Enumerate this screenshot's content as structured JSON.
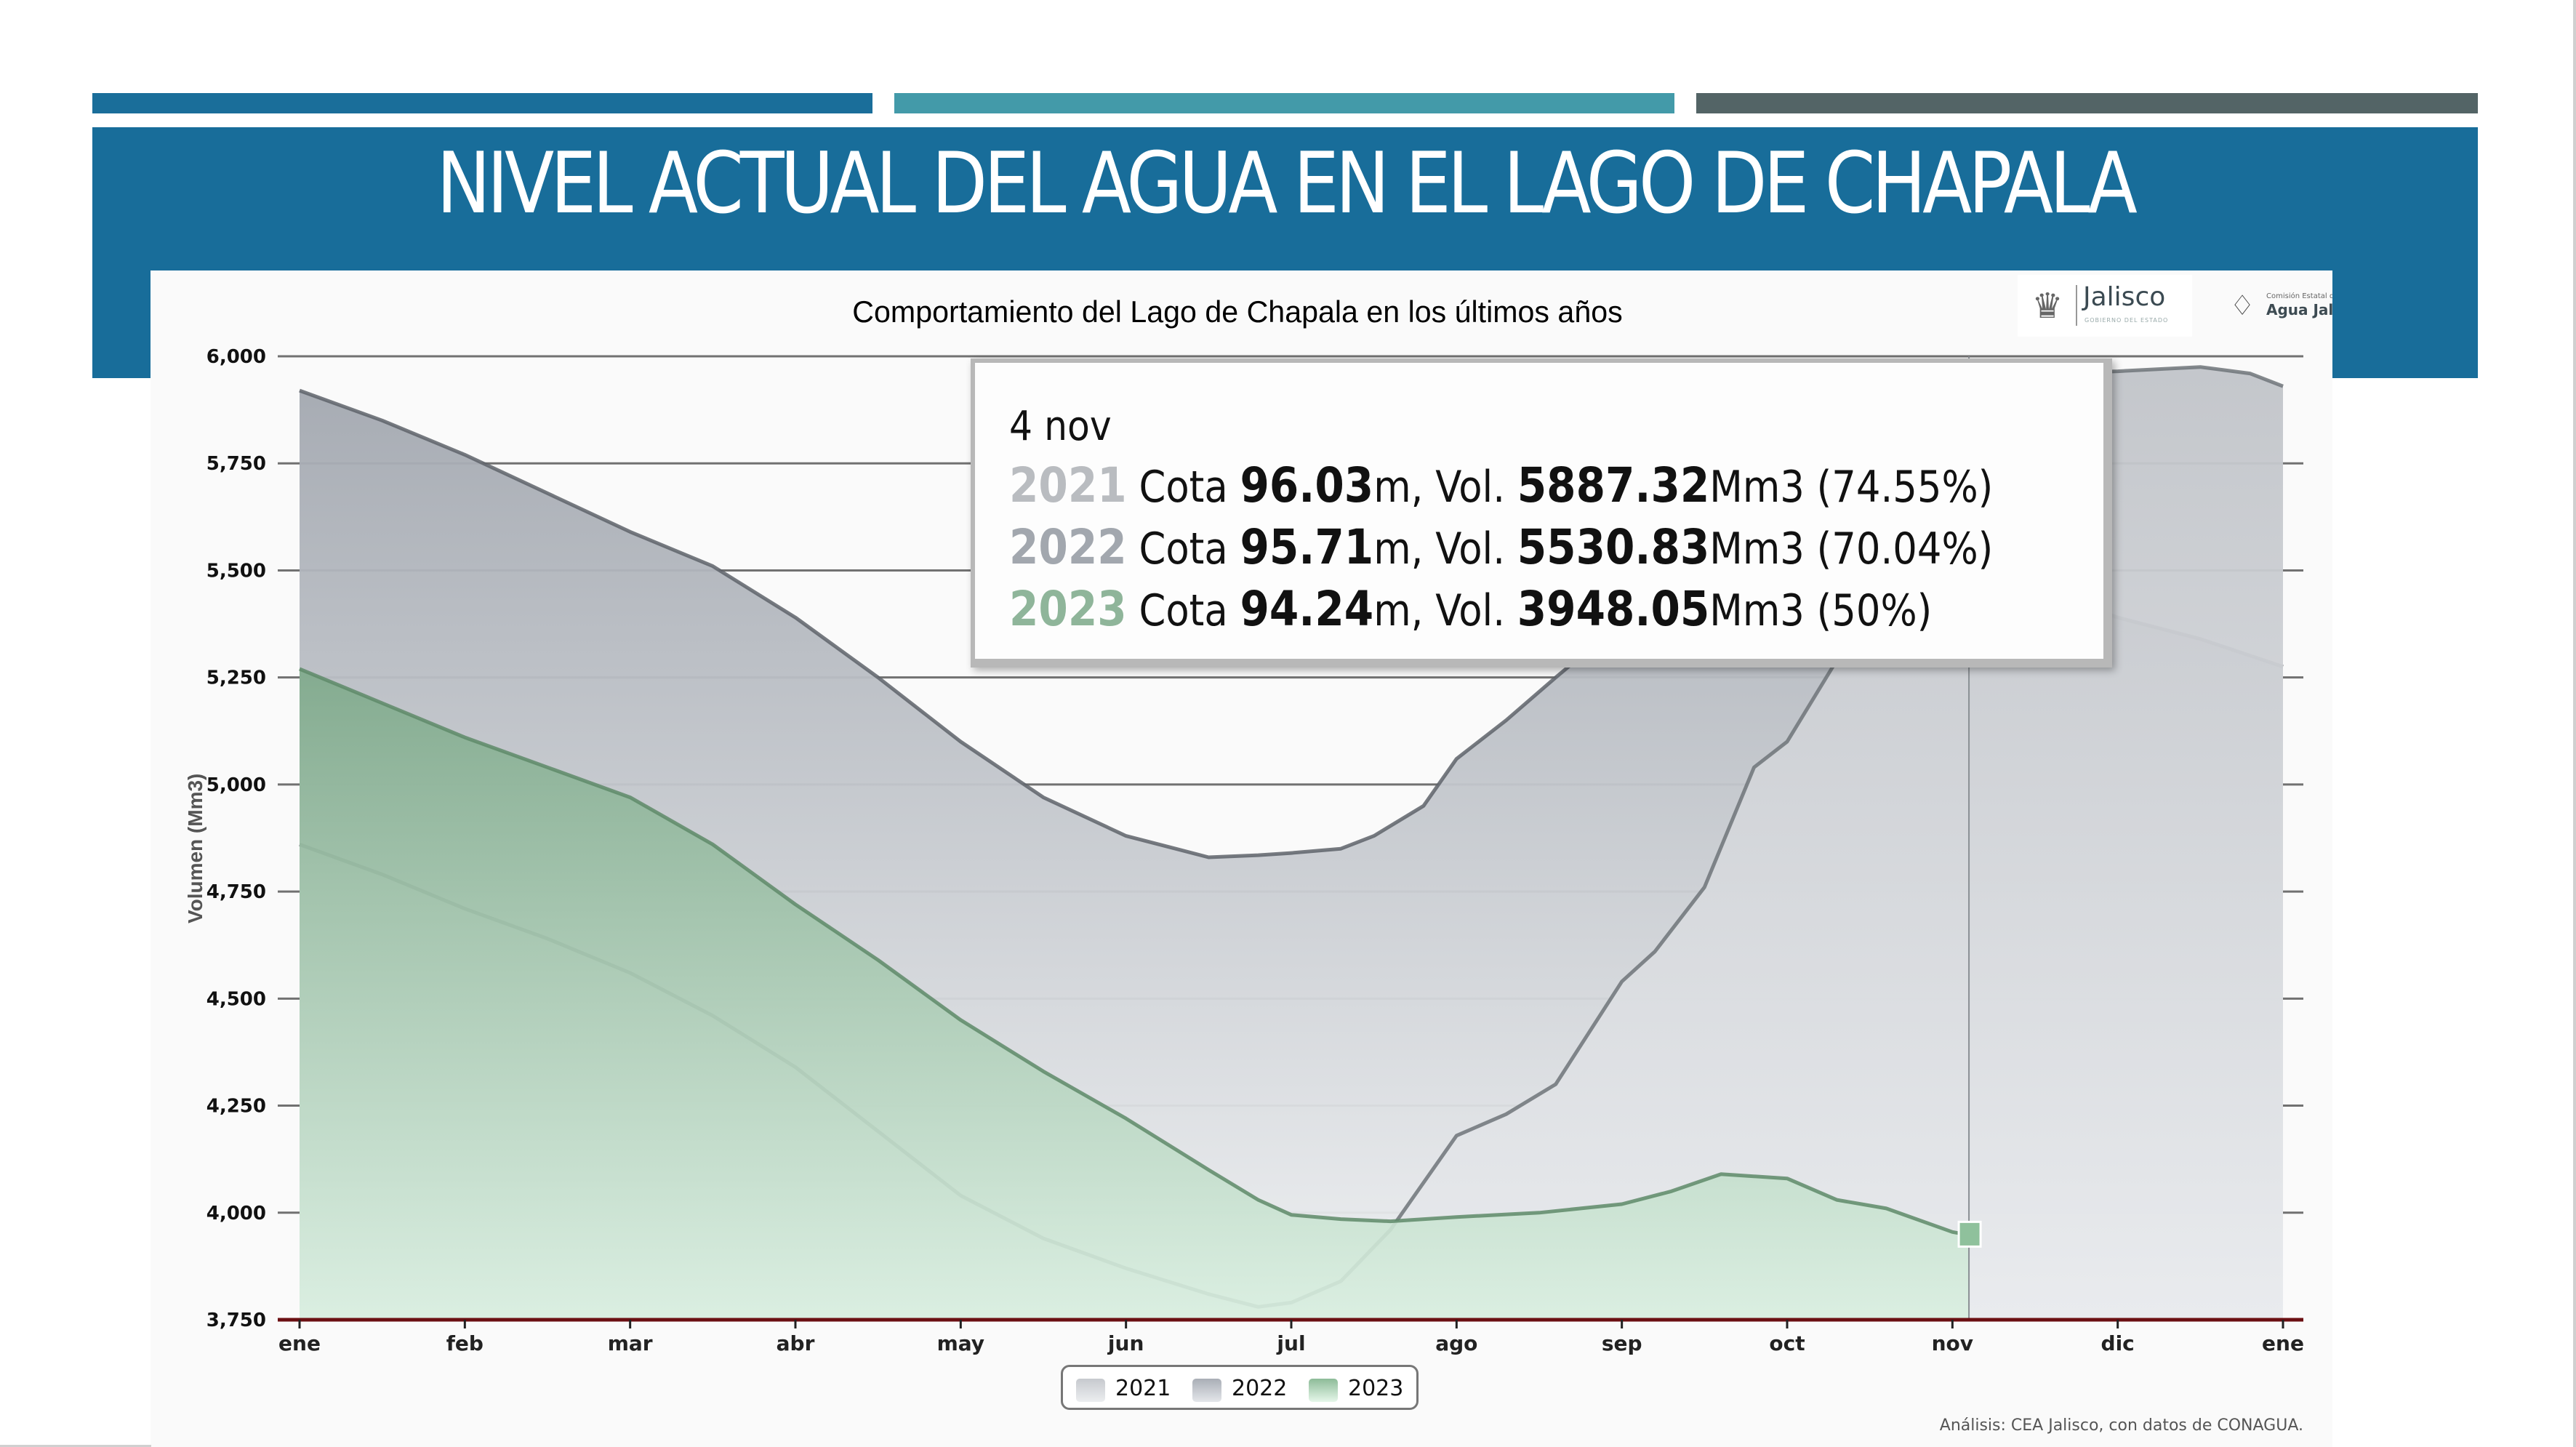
{
  "slide": {
    "title": "NIVEL ACTUAL DEL AGUA EN EL LAGO DE CHAPALA",
    "colors": {
      "banner": "#186d9a",
      "accent_bar_1": "#1a6e9a",
      "accent_bar_2": "#439aa9",
      "accent_bar_3": "#536466"
    }
  },
  "logos": {
    "jalisco": {
      "icon": "state-crest-icon",
      "name": "Jalisco",
      "subtitle": "GOBIERNO DEL ESTADO"
    },
    "cea": {
      "icon": "water-drop-icon",
      "line1": "Comisión Estatal del",
      "line2": "Agua Jalisco"
    }
  },
  "tooltip": {
    "date": "4 nov",
    "rows": [
      {
        "year": "2021",
        "color": "#b9bcc0",
        "cota_label": "Cota",
        "cota": "96.03",
        "cota_unit": "m,",
        "vol_label": "Vol.",
        "vol": "5887.32",
        "vol_unit": "Mm3",
        "pct": "(74.55%)"
      },
      {
        "year": "2022",
        "color": "#a2a7ae",
        "cota_label": "Cota",
        "cota": "95.71",
        "cota_unit": "m,",
        "vol_label": "Vol.",
        "vol": "5530.83",
        "vol_unit": "Mm3",
        "pct": "(70.04%)"
      },
      {
        "year": "2023",
        "color": "#8fb59a",
        "cota_label": "Cota",
        "cota": "94.24",
        "cota_unit": "m,",
        "vol_label": "Vol.",
        "vol": "3948.05",
        "vol_unit": "Mm3",
        "pct": "(50%)"
      }
    ]
  },
  "legend": [
    {
      "label": "2021",
      "swatch_top": "#c6c9ce",
      "swatch_bottom": "#eceef0"
    },
    {
      "label": "2022",
      "swatch_top": "#a9aeb6",
      "swatch_bottom": "#e4e6ea"
    },
    {
      "label": "2023",
      "swatch_top": "#8dbb98",
      "swatch_bottom": "#e6f7ea"
    }
  ],
  "source_note": "Análisis: CEA Jalisco, con datos de CONAGUA.",
  "chart_data": {
    "type": "area",
    "title": "Comportamiento del Lago de Chapala en los últimos años",
    "xlabel": "",
    "ylabel": "Volumen (Mm3)",
    "ylim": [
      3750,
      6000
    ],
    "yticks": [
      3750,
      4000,
      4250,
      4500,
      4750,
      5000,
      5250,
      5500,
      5750,
      6000
    ],
    "ytick_labels": [
      "3,750",
      "4,000",
      "4,250",
      "4,500",
      "4,750",
      "5,000",
      "5,250",
      "5,500",
      "5,750",
      "6,000"
    ],
    "categories": [
      "ene",
      "feb",
      "mar",
      "abr",
      "may",
      "jun",
      "jul",
      "ago",
      "sep",
      "oct",
      "nov",
      "dic",
      "ene"
    ],
    "grid": true,
    "legend_position": "bottom-center",
    "hover_marker": {
      "date": "4 nov",
      "month_index": 10.1,
      "series": "2023",
      "value": 3948.05
    },
    "series": [
      {
        "name": "2022",
        "color_line": "#5e636a",
        "fill_top": "#a3a8b0",
        "fill_bottom": "#eef0f2",
        "x": [
          0,
          0.5,
          1,
          1.5,
          2,
          2.5,
          3,
          3.5,
          4,
          4.5,
          5,
          5.3,
          5.5,
          5.8,
          6,
          6.3,
          6.5,
          6.8,
          7,
          7.3,
          7.6,
          8,
          8.5,
          9,
          9.5,
          9.8,
          10,
          10.5,
          11,
          11.5,
          12
        ],
        "values": [
          5920,
          5850,
          5770,
          5680,
          5590,
          5510,
          5390,
          5250,
          5100,
          4970,
          4880,
          4850,
          4830,
          4835,
          4840,
          4850,
          4880,
          4950,
          5060,
          5150,
          5250,
          5380,
          5480,
          5560,
          5580,
          5520,
          5530,
          5460,
          5390,
          5340,
          5275
        ]
      },
      {
        "name": "2021",
        "color_line": "#6f7479",
        "fill_top": "#c1c4c9",
        "fill_bottom": "#e9ebee",
        "x": [
          0,
          0.5,
          1,
          1.5,
          2,
          2.5,
          3,
          3.5,
          4,
          4.5,
          5,
          5.5,
          5.8,
          6,
          6.3,
          6.6,
          7,
          7.3,
          7.6,
          8,
          8.2,
          8.5,
          8.8,
          9,
          9.3,
          9.6,
          10,
          10.1,
          10.5,
          11,
          11.5,
          11.8,
          12
        ],
        "values": [
          4860,
          4790,
          4710,
          4640,
          4560,
          4460,
          4340,
          4190,
          4040,
          3940,
          3870,
          3810,
          3780,
          3790,
          3840,
          3960,
          4180,
          4230,
          4300,
          4540,
          4610,
          4760,
          5040,
          5100,
          5290,
          5520,
          5860,
          5887,
          5960,
          5965,
          5975,
          5960,
          5930
        ]
      },
      {
        "name": "2023",
        "color_line": "#5e8a68",
        "fill_top": "#7ea98a",
        "fill_bottom": "#d9efe0",
        "x": [
          0,
          0.5,
          1,
          1.5,
          2,
          2.5,
          3,
          3.5,
          4,
          4.5,
          5,
          5.5,
          5.8,
          6,
          6.3,
          6.6,
          7,
          7.5,
          8,
          8.3,
          8.6,
          9,
          9.3,
          9.6,
          10,
          10.1
        ],
        "values": [
          5270,
          5190,
          5110,
          5040,
          4970,
          4860,
          4720,
          4590,
          4450,
          4330,
          4220,
          4100,
          4030,
          3995,
          3985,
          3980,
          3990,
          4000,
          4020,
          4050,
          4090,
          4080,
          4030,
          4010,
          3955,
          3948
        ]
      }
    ]
  }
}
